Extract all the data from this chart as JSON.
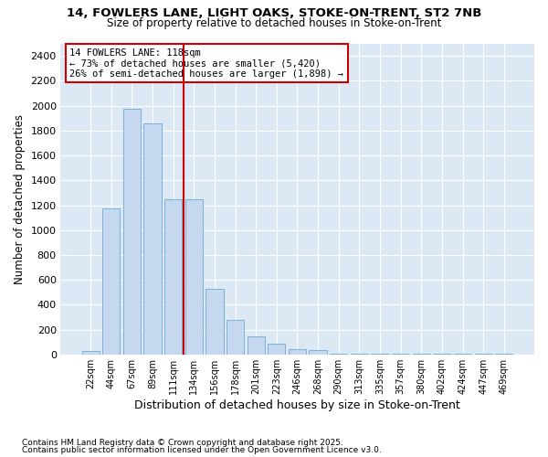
{
  "title1": "14, FOWLERS LANE, LIGHT OAKS, STOKE-ON-TRENT, ST2 7NB",
  "title2": "Size of property relative to detached houses in Stoke-on-Trent",
  "xlabel": "Distribution of detached houses by size in Stoke-on-Trent",
  "ylabel": "Number of detached properties",
  "categories": [
    "22sqm",
    "44sqm",
    "67sqm",
    "89sqm",
    "111sqm",
    "134sqm",
    "156sqm",
    "178sqm",
    "201sqm",
    "223sqm",
    "246sqm",
    "268sqm",
    "290sqm",
    "313sqm",
    "335sqm",
    "357sqm",
    "380sqm",
    "402sqm",
    "424sqm",
    "447sqm",
    "469sqm"
  ],
  "values": [
    30,
    1175,
    1975,
    1860,
    1250,
    1250,
    525,
    275,
    145,
    85,
    45,
    35,
    10,
    8,
    5,
    5,
    5,
    5,
    5,
    5,
    5
  ],
  "bar_color": "#c5d8f0",
  "bar_edge_color": "#6aaad4",
  "vline_x": 4.5,
  "vline_color": "#cc0000",
  "annotation_title": "14 FOWLERS LANE: 118sqm",
  "annotation_line1": "← 73% of detached houses are smaller (5,420)",
  "annotation_line2": "26% of semi-detached houses are larger (1,898) →",
  "annotation_box_color": "#cc0000",
  "ylim": [
    0,
    2500
  ],
  "yticks": [
    0,
    200,
    400,
    600,
    800,
    1000,
    1200,
    1400,
    1600,
    1800,
    2000,
    2200,
    2400
  ],
  "footer1": "Contains HM Land Registry data © Crown copyright and database right 2025.",
  "footer2": "Contains public sector information licensed under the Open Government Licence v3.0.",
  "fig_bg_color": "#ffffff",
  "plot_bg_color": "#dce9f5"
}
